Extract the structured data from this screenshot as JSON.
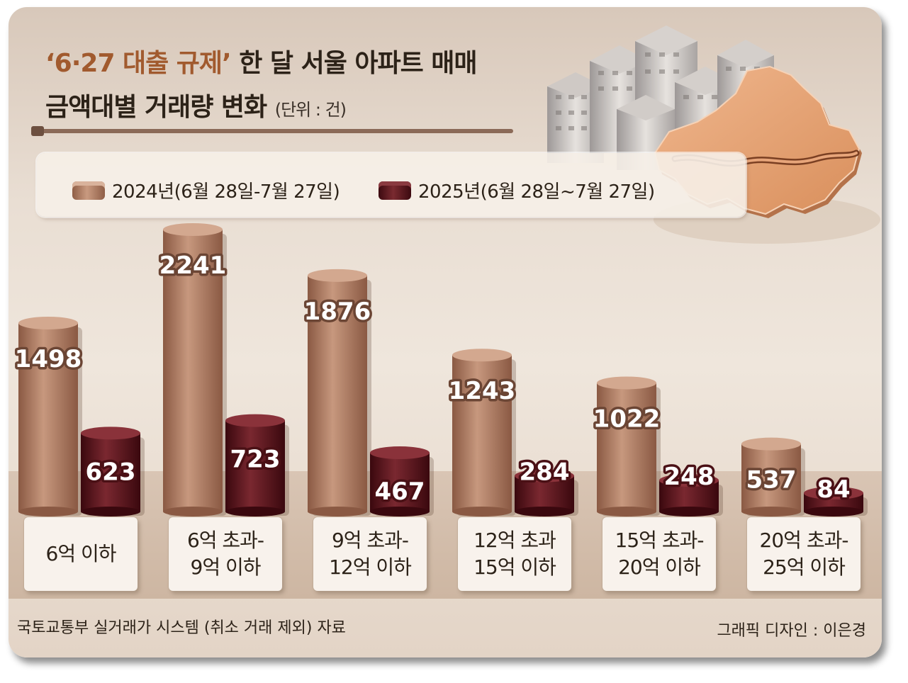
{
  "title": {
    "accent": "‘6·27 대출 규제’",
    "rest_line1": " 한 달 서울 아파트 매매",
    "line2": "금액대별 거래량 변화",
    "unit": "(단위 : 건)"
  },
  "legend": {
    "series_a": "2024년(6월 28일-7월 27일)",
    "series_b": "2025년(6월 28일~7월 27일)"
  },
  "footer": {
    "source": "국토교통부 실거래가 시스템 (취소 거래 제외) 자료",
    "designer": "그래픽 디자인 : 이은경"
  },
  "chart_data": {
    "type": "bar",
    "title": "‘6·27 대출 규제’ 한 달 서울 아파트 매매 금액대별 거래량 변화",
    "ylabel": "(단위 : 건)",
    "categories": [
      [
        "6억 이하"
      ],
      [
        "6억 초과-",
        "9억 이하"
      ],
      [
        "9억 초과-",
        "12억 이하"
      ],
      [
        "12억 초과",
        "15억 이하"
      ],
      [
        "15억 초과-",
        "20억 이하"
      ],
      [
        "20억 초과-",
        "25억 이하"
      ]
    ],
    "series": [
      {
        "name": "2024년(6월 28일-7월 27일)",
        "values": [
          1498,
          2241,
          1876,
          1243,
          1022,
          537
        ]
      },
      {
        "name": "2025년(6월 28일~7월 27일)",
        "values": [
          623,
          723,
          467,
          284,
          248,
          84
        ]
      }
    ],
    "ylim": [
      0,
      2241
    ],
    "grid": false,
    "legend_position": "top",
    "colors": {
      "series_a": "#b07e66",
      "series_b": "#5e1a20"
    }
  }
}
